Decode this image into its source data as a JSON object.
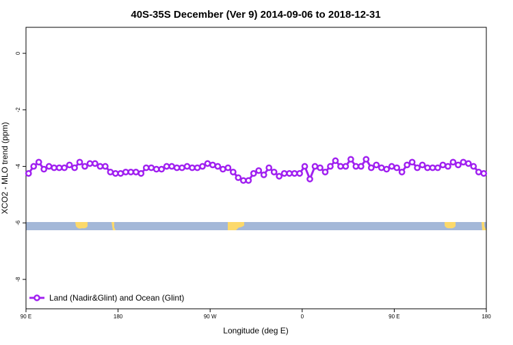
{
  "chart_data": {
    "type": "line",
    "title": "40S-35S December (Ver 9)   2014-09-06 to 2018-12-31",
    "x_label": "Longitude (deg E)",
    "y_label": "XCO2 - MLO trend (ppm)",
    "xlim": [
      90,
      540
    ],
    "xticks": [
      {
        "value": 90,
        "label": "90 E"
      },
      {
        "value": 180,
        "label": "180"
      },
      {
        "value": 270,
        "label": "90 W"
      },
      {
        "value": 360,
        "label": "0"
      },
      {
        "value": 450,
        "label": "90 E"
      },
      {
        "value": 540,
        "label": "180"
      }
    ],
    "ylim": [
      -9.04,
      0.92
    ],
    "yticks": [
      0,
      -2,
      -4,
      -6,
      -8
    ],
    "legend": "bottom-left",
    "x": [
      92.5,
      97.5,
      102.5,
      107.5,
      112.5,
      117.5,
      122.5,
      127.5,
      132.5,
      137.5,
      142.5,
      147.5,
      152.5,
      157.5,
      162.5,
      167.5,
      172.5,
      177.5,
      182.5,
      187.5,
      192.5,
      197.5,
      202.5,
      207.5,
      212.5,
      217.5,
      222.5,
      227.5,
      232.5,
      237.5,
      242.5,
      247.5,
      252.5,
      257.5,
      262.5,
      267.5,
      272.5,
      277.5,
      282.5,
      287.5,
      292.5,
      297.5,
      302.5,
      307.5,
      312.5,
      317.5,
      322.5,
      327.5,
      332.5,
      337.5,
      342.5,
      347.5,
      352.5,
      357.5,
      362.5,
      367.5,
      372.5,
      377.5,
      382.5,
      387.5,
      392.5,
      397.5,
      402.5,
      407.5,
      412.5,
      417.5,
      422.5,
      427.5,
      432.5,
      437.5,
      442.5,
      447.5,
      452.5,
      457.5,
      462.5,
      467.5,
      472.5,
      477.5,
      482.5,
      487.5,
      492.5,
      497.5,
      502.5,
      507.5,
      512.5,
      517.5,
      522.5,
      527.5,
      532.5,
      537.5
    ],
    "series": [
      {
        "name": "Land (Nadir&Glint) and Ocean (Glint)",
        "color": "#a020f0",
        "values": [
          -4.25,
          -4.0,
          -3.85,
          -4.1,
          -4.0,
          -4.05,
          -4.05,
          -4.05,
          -3.95,
          -4.05,
          -3.85,
          -4.0,
          -3.9,
          -3.9,
          -4.0,
          -4.0,
          -4.2,
          -4.25,
          -4.25,
          -4.2,
          -4.2,
          -4.2,
          -4.25,
          -4.05,
          -4.05,
          -4.1,
          -4.1,
          -4.0,
          -4.0,
          -4.05,
          -4.05,
          -4.0,
          -4.05,
          -4.05,
          -4.0,
          -3.9,
          -3.95,
          -4.0,
          -4.1,
          -4.05,
          -4.2,
          -4.4,
          -4.5,
          -4.5,
          -4.25,
          -4.15,
          -4.3,
          -4.05,
          -4.2,
          -4.35,
          -4.25,
          -4.25,
          -4.25,
          -4.25,
          -4.0,
          -4.45,
          -4.0,
          -4.05,
          -4.2,
          -4.0,
          -3.8,
          -4.0,
          -4.0,
          -3.75,
          -4.0,
          -4.0,
          -3.75,
          -4.05,
          -3.95,
          -4.05,
          -4.1,
          -4.0,
          -4.05,
          -4.2,
          -3.95,
          -3.85,
          -4.05,
          -3.95,
          -4.05,
          -4.05,
          -4.05,
          -3.95,
          -4.0,
          -3.85,
          -3.95,
          -3.85,
          -3.9,
          -4.0,
          -4.2,
          -4.25
        ]
      }
    ]
  }
}
